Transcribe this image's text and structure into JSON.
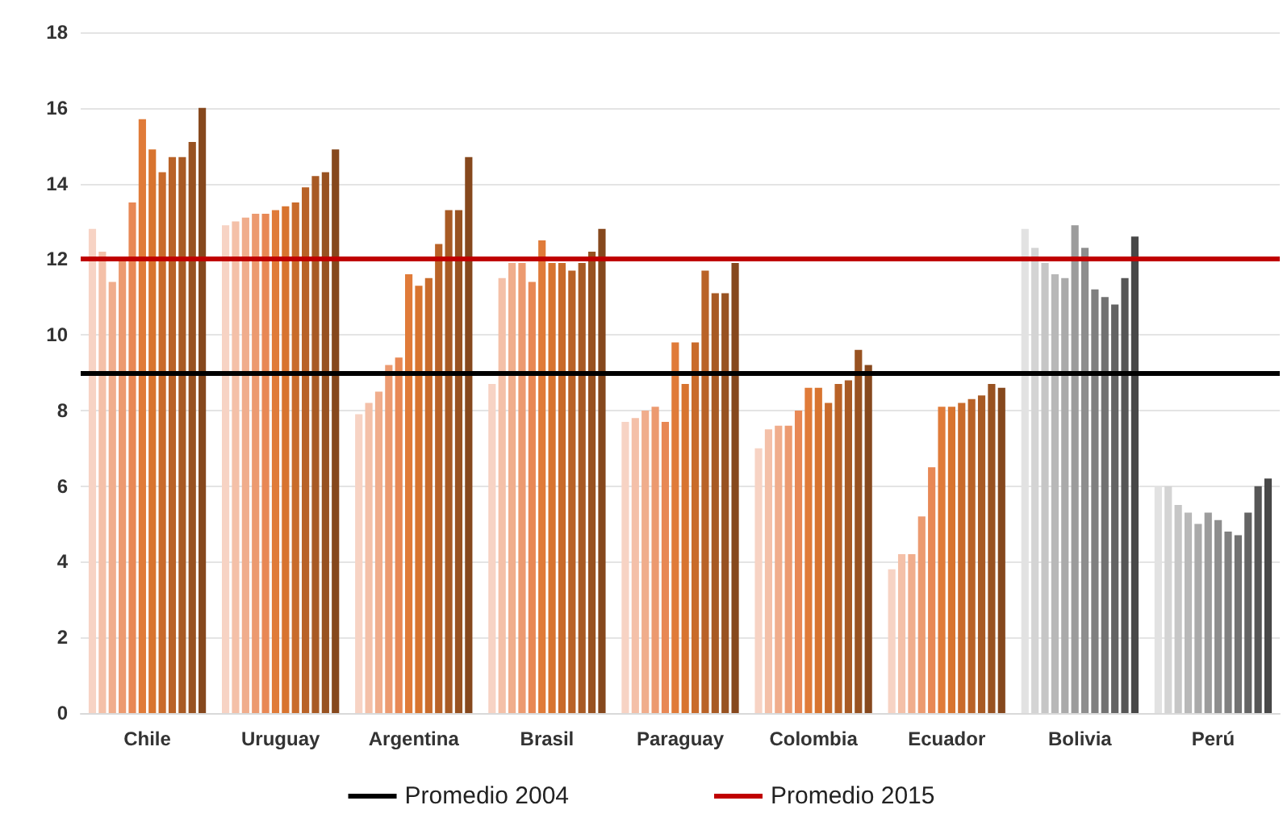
{
  "chart_data": {
    "type": "bar",
    "categories": [
      "Chile",
      "Uruguay",
      "Argentina",
      "Brasil",
      "Paraguay",
      "Colombia",
      "Ecuador",
      "Bolivia",
      "Perú"
    ],
    "ylim": [
      0,
      18
    ],
    "yticks": [
      0,
      2,
      4,
      6,
      8,
      10,
      12,
      14,
      16,
      18
    ],
    "grid": "y",
    "legend": "bottom",
    "series": [
      {
        "colors": [
          "#f7d3c4",
          "#f7d3c4",
          "#f7d3c4",
          "#f7d3c4",
          "#f7d3c4",
          "#f7d3c4",
          "#f7d3c4",
          "#e2e2e2",
          "#e2e2e2"
        ],
        "values": [
          12.8,
          12.9,
          7.9,
          8.7,
          7.7,
          7.0,
          3.8,
          12.8,
          6.0
        ]
      },
      {
        "colors": [
          "#f4c0a8",
          "#f4c0a8",
          "#f4c0a8",
          "#f4c0a8",
          "#f4c0a8",
          "#f4c0a8",
          "#f4c0a8",
          "#d4d4d4",
          "#d4d4d4"
        ],
        "values": [
          12.2,
          13.0,
          8.2,
          11.5,
          7.8,
          7.5,
          4.2,
          12.3,
          6.0
        ]
      },
      {
        "colors": [
          "#f0ad8c",
          "#f0ad8c",
          "#f0ad8c",
          "#f0ad8c",
          "#f0ad8c",
          "#f0ad8c",
          "#f0ad8c",
          "#c6c6c6",
          "#c6c6c6"
        ],
        "values": [
          11.4,
          13.1,
          8.5,
          11.9,
          8.0,
          7.6,
          4.2,
          11.9,
          5.5
        ]
      },
      {
        "colors": [
          "#ec9a70",
          "#ec9a70",
          "#ec9a70",
          "#ec9a70",
          "#ec9a70",
          "#ec9a70",
          "#ec9a70",
          "#b8b8b8",
          "#b8b8b8"
        ],
        "values": [
          12.0,
          13.2,
          9.2,
          11.9,
          8.1,
          7.6,
          5.2,
          11.6,
          5.3
        ]
      },
      {
        "colors": [
          "#e88855",
          "#e88855",
          "#e88855",
          "#e88855",
          "#e88855",
          "#e88855",
          "#e88855",
          "#aaaaaa",
          "#aaaaaa"
        ],
        "values": [
          13.5,
          13.2,
          9.4,
          11.4,
          7.7,
          8.0,
          6.5,
          11.5,
          5.0
        ]
      },
      {
        "colors": [
          "#e07b39",
          "#e07b39",
          "#e07b39",
          "#e07b39",
          "#e07b39",
          "#e07b39",
          "#e07b39",
          "#9c9c9c",
          "#9c9c9c"
        ],
        "values": [
          15.7,
          13.3,
          11.6,
          12.5,
          9.8,
          8.6,
          8.1,
          12.9,
          5.3
        ]
      },
      {
        "colors": [
          "#d8742f",
          "#d8742f",
          "#d8742f",
          "#d8742f",
          "#d8742f",
          "#d8742f",
          "#d8742f",
          "#8e8e8e",
          "#8e8e8e"
        ],
        "values": [
          14.9,
          13.4,
          11.3,
          11.9,
          8.7,
          8.6,
          8.1,
          12.3,
          5.1
        ]
      },
      {
        "colors": [
          "#c96b2b",
          "#c96b2b",
          "#c96b2b",
          "#c96b2b",
          "#c96b2b",
          "#c96b2b",
          "#c96b2b",
          "#808080",
          "#808080"
        ],
        "values": [
          14.3,
          13.5,
          11.5,
          11.9,
          9.8,
          8.2,
          8.2,
          11.2,
          4.8
        ]
      },
      {
        "colors": [
          "#b96227",
          "#b96227",
          "#b96227",
          "#b96227",
          "#b96227",
          "#b96227",
          "#b96227",
          "#727272",
          "#727272"
        ],
        "values": [
          14.7,
          13.9,
          12.4,
          11.7,
          11.7,
          8.7,
          8.3,
          11.0,
          4.7
        ]
      },
      {
        "colors": [
          "#a85a24",
          "#a85a24",
          "#a85a24",
          "#a85a24",
          "#a85a24",
          "#a85a24",
          "#a85a24",
          "#646464",
          "#646464"
        ],
        "values": [
          14.7,
          14.2,
          13.3,
          11.9,
          11.1,
          8.8,
          8.4,
          10.8,
          5.3
        ]
      },
      {
        "colors": [
          "#985221",
          "#985221",
          "#985221",
          "#985221",
          "#985221",
          "#985221",
          "#985221",
          "#565656",
          "#565656"
        ],
        "values": [
          15.1,
          14.3,
          13.3,
          12.2,
          11.1,
          9.6,
          8.7,
          11.5,
          6.0
        ]
      },
      {
        "colors": [
          "#86481d",
          "#86481d",
          "#86481d",
          "#86481d",
          "#86481d",
          "#86481d",
          "#86481d",
          "#484848",
          "#484848"
        ],
        "values": [
          16.0,
          14.9,
          14.7,
          12.8,
          11.9,
          9.2,
          8.6,
          12.6,
          6.2
        ]
      }
    ],
    "ref_lines": [
      {
        "axis": "y",
        "value": 9,
        "label": "Promedio 2004",
        "color": "#000000"
      },
      {
        "axis": "y",
        "value": 12,
        "label": "Promedio 2015",
        "color": "#c00000"
      }
    ]
  }
}
